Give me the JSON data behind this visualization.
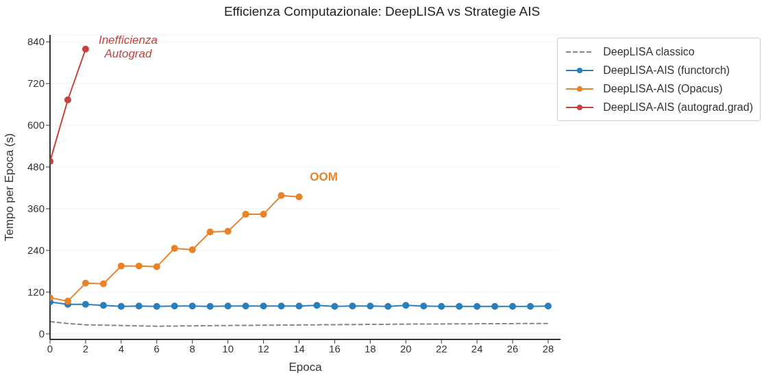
{
  "chart_data": {
    "type": "line",
    "title": "Efficienza Computazionale: DeepLISA vs Strategie AIS",
    "xlabel": "Epoca",
    "ylabel": "Tempo per Epoca (s)",
    "xlim": [
      0,
      28.7
    ],
    "xticks": [
      0,
      2,
      4,
      6,
      8,
      10,
      12,
      14,
      16,
      18,
      20,
      22,
      24,
      26,
      28
    ],
    "ylim": [
      -16,
      860
    ],
    "yticks": [
      0,
      120,
      240,
      360,
      480,
      600,
      720,
      840
    ],
    "grid": "y",
    "legend": "top right",
    "series": [
      {
        "name": "DeepLISA classico",
        "color": "#7f8794",
        "line_style": "dashed",
        "marker": "none",
        "x": [
          0,
          1,
          2,
          4,
          6,
          10,
          20,
          28
        ],
        "values": [
          35,
          30,
          26,
          24,
          22,
          24,
          28,
          30
        ]
      },
      {
        "name": "DeepLISA-AIS (functorch)",
        "color": "#2a7fba",
        "line_style": "solid",
        "marker": "circle",
        "x": [
          0,
          1,
          2,
          3,
          4,
          5,
          6,
          7,
          8,
          9,
          10,
          11,
          12,
          13,
          14,
          15,
          16,
          17,
          18,
          19,
          20,
          21,
          22,
          23,
          24,
          25,
          26,
          27,
          28
        ],
        "values": [
          92,
          85,
          85,
          82,
          79,
          80,
          79,
          80,
          80,
          79,
          80,
          80,
          80,
          80,
          80,
          82,
          79,
          80,
          80,
          79,
          82,
          80,
          79,
          79,
          79,
          79,
          79,
          79,
          80
        ]
      },
      {
        "name": "DeepLISA-AIS (Opacus)",
        "color": "#e8832a",
        "line_style": "solid",
        "marker": "circle",
        "x": [
          0,
          1,
          2,
          3,
          4,
          5,
          6,
          7,
          8,
          9,
          10,
          11,
          12,
          13,
          14
        ],
        "values": [
          104,
          94,
          146,
          144,
          195,
          195,
          193,
          246,
          242,
          293,
          295,
          344,
          344,
          398,
          394
        ]
      },
      {
        "name": "DeepLISA-AIS (autograd.grad)",
        "color": "#c8413a",
        "line_style": "solid",
        "marker": "circle",
        "x": [
          0,
          1,
          2
        ],
        "values": [
          496,
          673,
          819
        ]
      }
    ],
    "annotations": [
      "Inefficienza\nAutograd",
      "OOM"
    ]
  }
}
